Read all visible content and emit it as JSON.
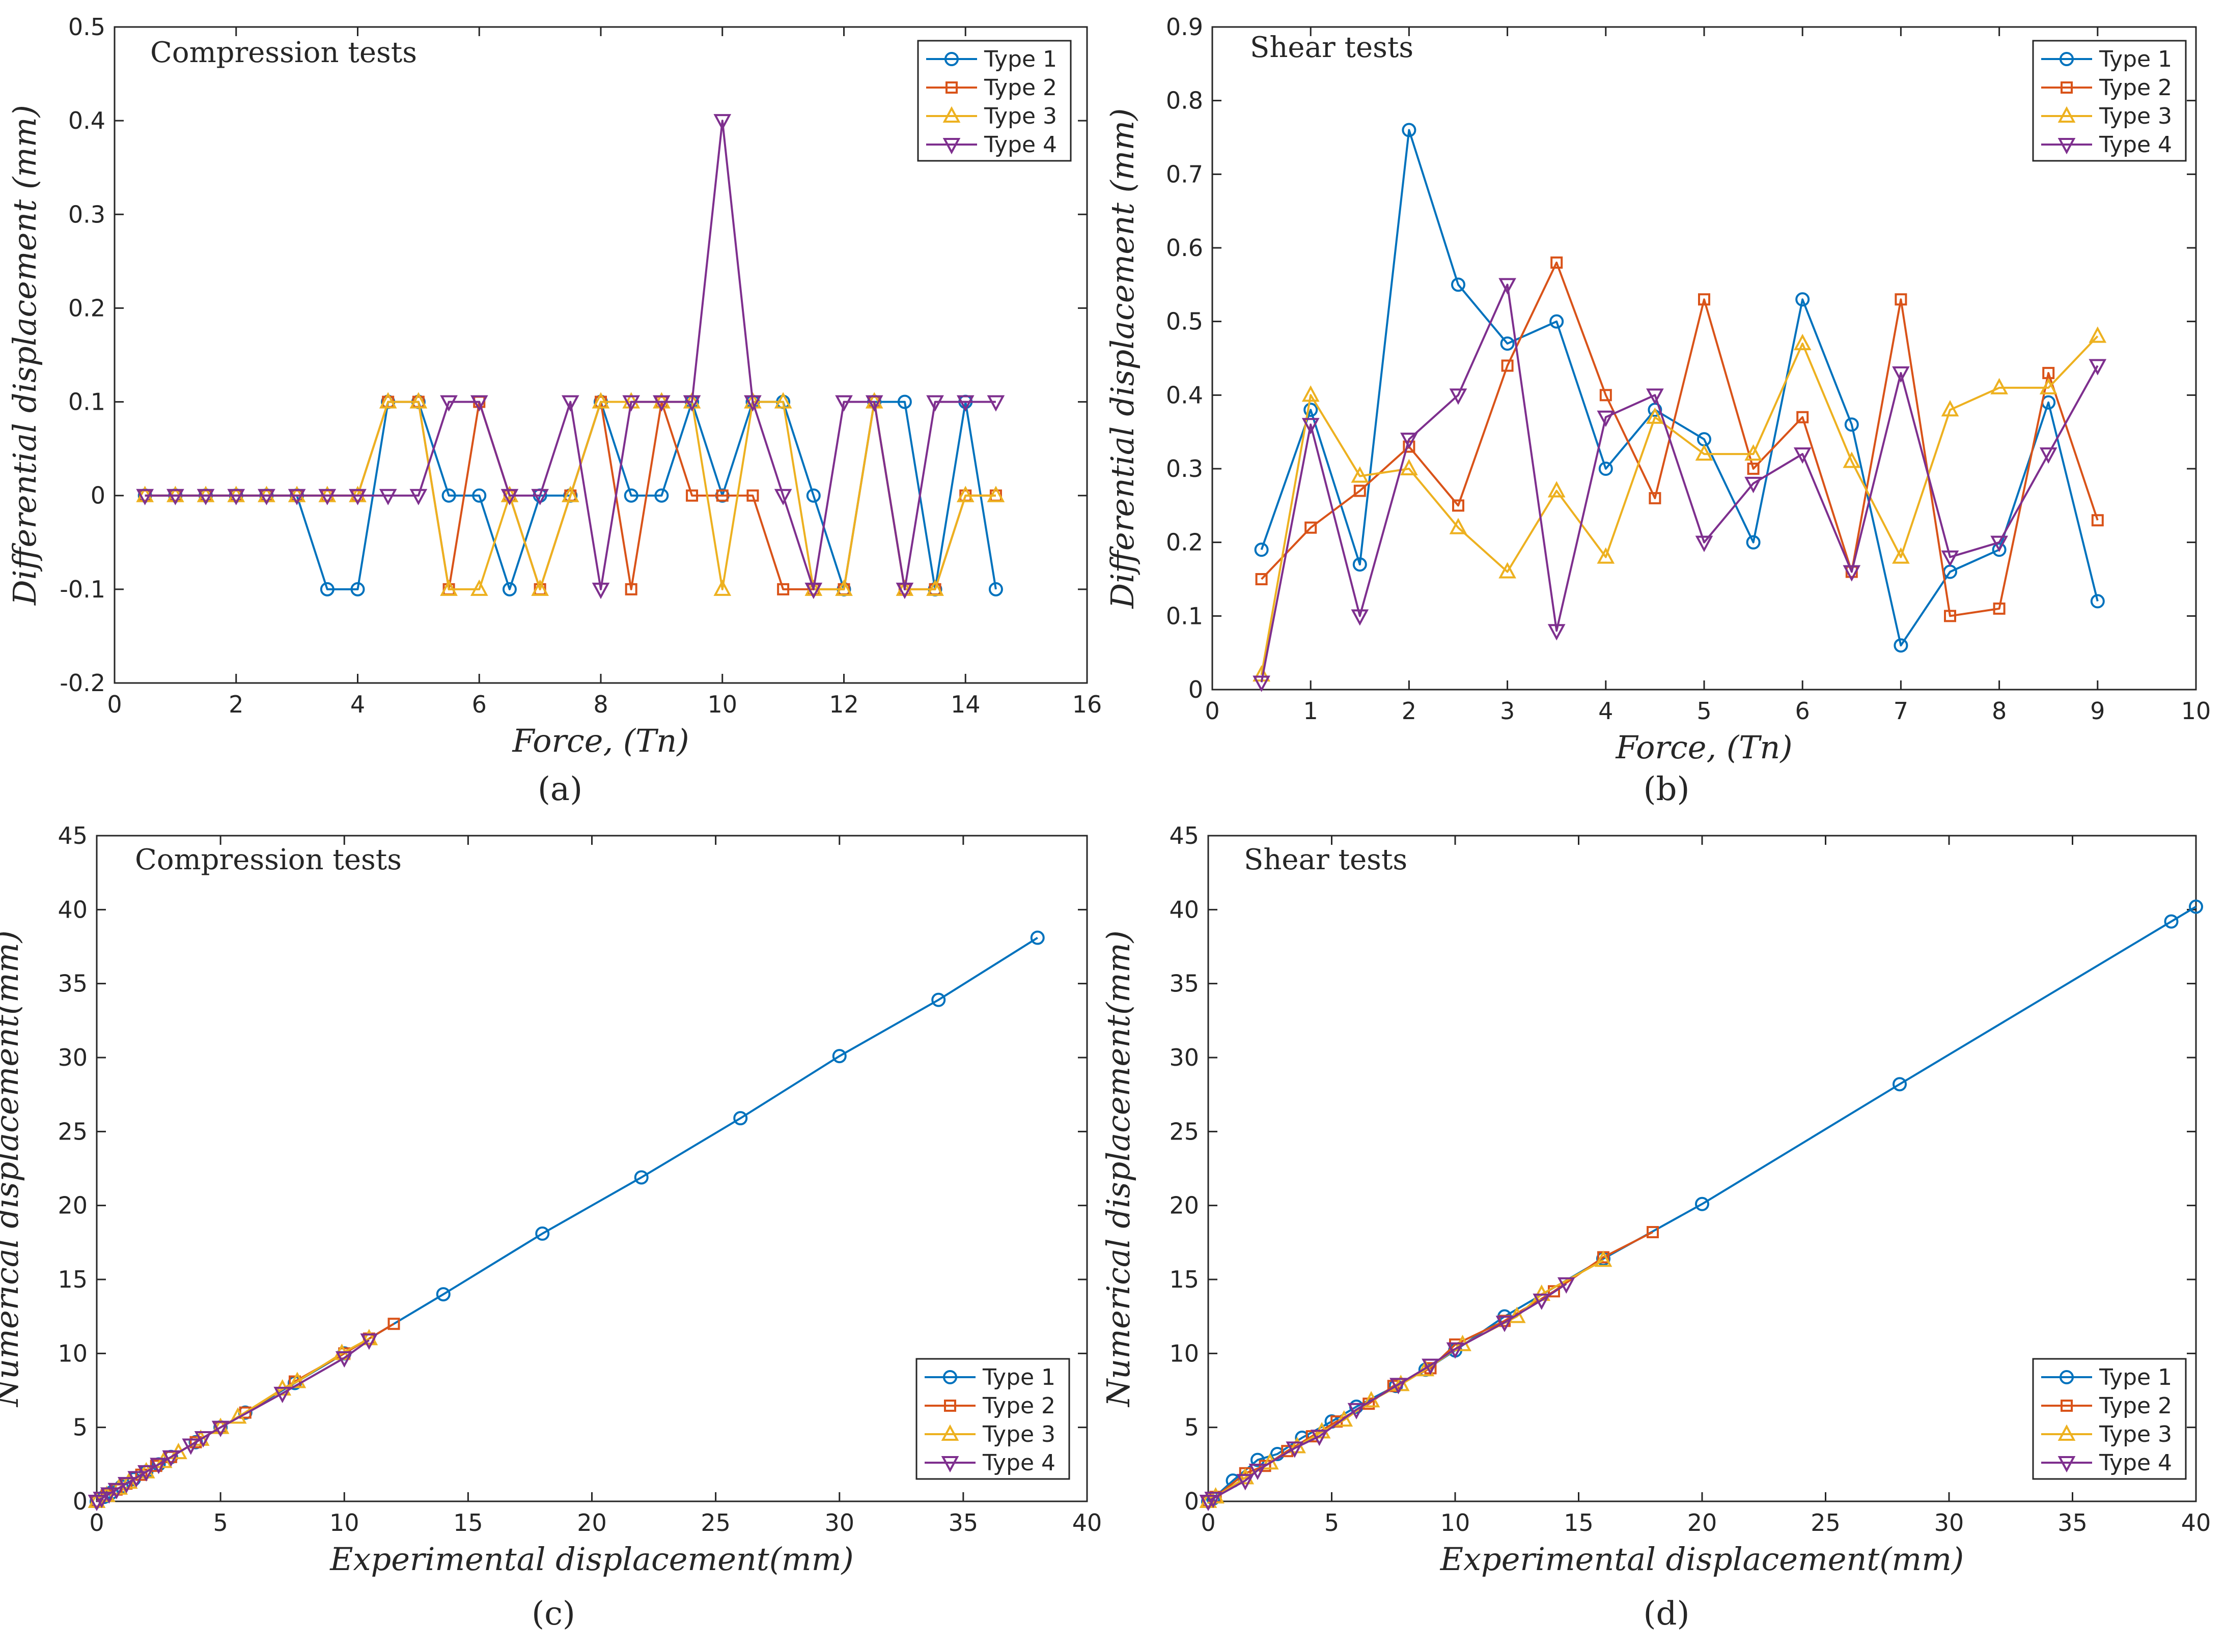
{
  "colors": {
    "type1": "#0072BD",
    "type2": "#D95319",
    "type3": "#EDB120",
    "type4": "#7E2F8E",
    "axis": "#262626",
    "grid": "#262626"
  },
  "chart_data": [
    {
      "type": "line",
      "panel_label": "(a)",
      "title": "Compression tests",
      "xlabel": "Force, (Tn)",
      "ylabel": "Differential displacement (mm)",
      "xlim": [
        0,
        16
      ],
      "ylim": [
        -0.2,
        0.5
      ],
      "xticks": [
        0,
        2,
        4,
        6,
        8,
        10,
        12,
        14,
        16
      ],
      "yticks": [
        -0.2,
        -0.1,
        0,
        0.1,
        0.2,
        0.3,
        0.4,
        0.5
      ],
      "legend_position": "top-right",
      "series": [
        {
          "name": "Type 1",
          "marker": "circle",
          "x": [
            0.5,
            1,
            1.5,
            2,
            2.5,
            3,
            3.5,
            4,
            4.5,
            5,
            5.5,
            6,
            6.5,
            7,
            7.5,
            8,
            8.5,
            9,
            9.5,
            10,
            10.5,
            11,
            11.5,
            12,
            12.5,
            13,
            13.5,
            14,
            14.5
          ],
          "y": [
            0,
            0,
            0,
            0,
            0,
            0,
            -0.1,
            -0.1,
            0.1,
            0.1,
            0,
            0,
            -0.1,
            0,
            0,
            0.1,
            0,
            0,
            0.1,
            0,
            0.1,
            0.1,
            0,
            -0.1,
            0.1,
            0.1,
            -0.1,
            0.1,
            -0.1
          ]
        },
        {
          "name": "Type 2",
          "marker": "square",
          "x": [
            0.5,
            1,
            1.5,
            2,
            2.5,
            3,
            3.5,
            4,
            4.5,
            5,
            5.5,
            6,
            6.5,
            7,
            7.5,
            8,
            8.5,
            9,
            9.5,
            10,
            10.5,
            11,
            11.5,
            12,
            12.5,
            13,
            13.5,
            14,
            14.5
          ],
          "y": [
            0,
            0,
            0,
            0,
            0,
            0,
            0,
            0,
            0.1,
            0.1,
            -0.1,
            0.1,
            0,
            -0.1,
            0,
            0.1,
            -0.1,
            0.1,
            0,
            0,
            0,
            -0.1,
            -0.1,
            -0.1,
            0.1,
            -0.1,
            -0.1,
            0,
            0
          ]
        },
        {
          "name": "Type 3",
          "marker": "triangle-up",
          "x": [
            0.5,
            1,
            1.5,
            2,
            2.5,
            3,
            3.5,
            4,
            4.5,
            5,
            5.5,
            6,
            6.5,
            7,
            7.5,
            8,
            8.5,
            9,
            9.5,
            10,
            10.5,
            11,
            11.5,
            12,
            12.5,
            13,
            13.5,
            14,
            14.5
          ],
          "y": [
            0,
            0,
            0,
            0,
            0,
            0,
            0,
            0,
            0.1,
            0.1,
            -0.1,
            -0.1,
            0,
            -0.1,
            0,
            0.1,
            0.1,
            0.1,
            0.1,
            -0.1,
            0.1,
            0.1,
            -0.1,
            -0.1,
            0.1,
            -0.1,
            -0.1,
            0,
            0
          ]
        },
        {
          "name": "Type 4",
          "marker": "triangle-down",
          "x": [
            0.5,
            1,
            1.5,
            2,
            2.5,
            3,
            3.5,
            4,
            4.5,
            5,
            5.5,
            6,
            6.5,
            7,
            7.5,
            8,
            8.5,
            9,
            9.5,
            10,
            10.5,
            11,
            11.5,
            12,
            12.5,
            13,
            13.5,
            14,
            14.5
          ],
          "y": [
            0,
            0,
            0,
            0,
            0,
            0,
            0,
            0,
            0,
            0,
            0.1,
            0.1,
            0,
            0,
            0.1,
            -0.1,
            0.1,
            0.1,
            0.1,
            0.4,
            0.1,
            0,
            -0.1,
            0.1,
            0.1,
            -0.1,
            0.1,
            0.1,
            0.1
          ]
        }
      ]
    },
    {
      "type": "line",
      "panel_label": "(b)",
      "title": "Shear tests",
      "xlabel": "Force, (Tn)",
      "ylabel": "Differential displacement (mm)",
      "xlim": [
        0,
        10
      ],
      "ylim": [
        0,
        0.9
      ],
      "xticks": [
        0,
        1,
        2,
        3,
        4,
        5,
        6,
        7,
        8,
        9,
        10
      ],
      "yticks": [
        0,
        0.1,
        0.2,
        0.3,
        0.4,
        0.5,
        0.6,
        0.7,
        0.8,
        0.9
      ],
      "legend_position": "top-right",
      "series": [
        {
          "name": "Type 1",
          "marker": "circle",
          "x": [
            0.5,
            1,
            1.5,
            2,
            2.5,
            3,
            3.5,
            4,
            4.5,
            5,
            5.5,
            6,
            6.5,
            7,
            7.5,
            8,
            8.5,
            9
          ],
          "y": [
            0.19,
            0.38,
            0.17,
            0.76,
            0.55,
            0.47,
            0.5,
            0.3,
            0.38,
            0.34,
            0.2,
            0.53,
            0.36,
            0.06,
            0.16,
            0.19,
            0.39,
            0.12
          ]
        },
        {
          "name": "Type 2",
          "marker": "square",
          "x": [
            0.5,
            1,
            1.5,
            2,
            2.5,
            3,
            3.5,
            4,
            4.5,
            5,
            5.5,
            6,
            6.5,
            7,
            7.5,
            8,
            8.5,
            9
          ],
          "y": [
            0.15,
            0.22,
            0.27,
            0.33,
            0.25,
            0.44,
            0.58,
            0.4,
            0.26,
            0.53,
            0.3,
            0.37,
            0.16,
            0.53,
            0.1,
            0.11,
            0.43,
            0.23
          ]
        },
        {
          "name": "Type 3",
          "marker": "triangle-up",
          "x": [
            0.5,
            1,
            1.5,
            2,
            2.5,
            3,
            3.5,
            4,
            4.5,
            5,
            5.5,
            6,
            6.5,
            7,
            7.5,
            8,
            8.5,
            9
          ],
          "y": [
            0.02,
            0.4,
            0.29,
            0.3,
            0.22,
            0.16,
            0.27,
            0.18,
            0.37,
            0.32,
            0.32,
            0.47,
            0.31,
            0.18,
            0.38,
            0.41,
            0.41,
            0.48
          ]
        },
        {
          "name": "Type 4",
          "marker": "triangle-down",
          "x": [
            0.5,
            1,
            1.5,
            2,
            2.5,
            3,
            3.5,
            4,
            4.5,
            5,
            5.5,
            6,
            6.5,
            7,
            7.5,
            8,
            8.5,
            9
          ],
          "y": [
            0.01,
            0.36,
            0.1,
            0.34,
            0.4,
            0.55,
            0.08,
            0.37,
            0.4,
            0.2,
            0.28,
            0.32,
            0.16,
            0.43,
            0.18,
            0.2,
            0.32,
            0.44
          ]
        }
      ]
    },
    {
      "type": "line",
      "panel_label": "(c)",
      "title": "Compression tests",
      "xlabel": "Experimental displacement(mm)",
      "ylabel": "Numerical displacement(mm)",
      "xlim": [
        0,
        40
      ],
      "ylim": [
        0,
        45
      ],
      "xticks": [
        0,
        5,
        10,
        15,
        20,
        25,
        30,
        35,
        40
      ],
      "yticks": [
        0,
        5,
        10,
        15,
        20,
        25,
        30,
        35,
        40,
        45
      ],
      "legend_position": "bottom-right",
      "series": [
        {
          "name": "Type 1",
          "marker": "circle",
          "x": [
            0,
            0.3,
            0.6,
            1,
            1.5,
            2,
            2.5,
            3,
            4,
            5,
            6,
            8,
            10,
            14,
            18,
            22,
            26,
            30,
            34,
            38
          ],
          "y": [
            0,
            0.3,
            0.6,
            1,
            1.5,
            2,
            2.5,
            3,
            4,
            5,
            6,
            8,
            10,
            14,
            18.1,
            21.9,
            25.9,
            30.1,
            33.9,
            38.1
          ]
        },
        {
          "name": "Type 2",
          "marker": "square",
          "x": [
            0,
            0.4,
            0.8,
            1.2,
            1.8,
            2.4,
            3,
            4,
            5,
            6,
            8,
            10,
            11,
            12
          ],
          "y": [
            0,
            0.4,
            0.8,
            1.2,
            1.8,
            2.4,
            3,
            4,
            5,
            6,
            8.1,
            10,
            11,
            12
          ]
        },
        {
          "name": "Type 3",
          "marker": "triangle-up",
          "x": [
            0,
            0.4,
            0.9,
            1.3,
            2,
            2.7,
            3.3,
            4.2,
            5,
            5.7,
            7.5,
            8.1,
            9.9,
            11
          ],
          "y": [
            0,
            0.4,
            0.9,
            1.3,
            2,
            2.7,
            3.3,
            4.2,
            5,
            5.7,
            7.6,
            8.1,
            10,
            11
          ]
        },
        {
          "name": "Type 4",
          "marker": "triangle-down",
          "x": [
            0,
            0.2,
            0.5,
            0.8,
            1.2,
            1.6,
            2,
            2.5,
            3,
            3.8,
            4.3,
            5,
            7.5,
            10,
            11
          ],
          "y": [
            0,
            0.2,
            0.5,
            0.8,
            1.2,
            1.6,
            2,
            2.5,
            3,
            3.8,
            4.3,
            5,
            7.3,
            9.7,
            10.9
          ]
        }
      ]
    },
    {
      "type": "line",
      "panel_label": "(d)",
      "title": "Shear tests",
      "xlabel": "Experimental displacement(mm)",
      "ylabel": "Numerical displacement(mm)",
      "xlim": [
        0,
        40
      ],
      "ylim": [
        0,
        45
      ],
      "xticks": [
        0,
        5,
        10,
        15,
        20,
        25,
        30,
        35,
        40
      ],
      "yticks": [
        0,
        5,
        10,
        15,
        20,
        25,
        30,
        35,
        40,
        45
      ],
      "legend_position": "bottom-right",
      "series": [
        {
          "name": "Type 1",
          "marker": "circle",
          "x": [
            0,
            0.2,
            1,
            2,
            2.8,
            3.8,
            5,
            6,
            7.6,
            8.8,
            10,
            12,
            16,
            20,
            28,
            39,
            40
          ],
          "y": [
            0,
            0.2,
            1.4,
            2.8,
            3.2,
            4.3,
            5.4,
            6.4,
            7.8,
            8.9,
            10.2,
            12.5,
            16.4,
            20.1,
            28.2,
            39.2,
            40.2
          ]
        },
        {
          "name": "Type 2",
          "marker": "square",
          "x": [
            0,
            0.3,
            1.5,
            2.3,
            3.2,
            4.2,
            5.2,
            6.5,
            7.5,
            9,
            10,
            12,
            14,
            16,
            18
          ],
          "y": [
            0,
            0.3,
            1.9,
            2.4,
            3.4,
            4.4,
            5.4,
            6.6,
            7.8,
            9,
            10.6,
            12.2,
            14.2,
            16.5,
            18.2
          ]
        },
        {
          "name": "Type 3",
          "marker": "triangle-up",
          "x": [
            0,
            0.3,
            1.5,
            2.5,
            3.6,
            4.6,
            5.5,
            6.6,
            7.8,
            8.8,
            10.3,
            12.5,
            13.5,
            16
          ],
          "y": [
            0,
            0.3,
            1.6,
            2.6,
            3.7,
            4.7,
            5.5,
            6.8,
            7.9,
            8.9,
            10.6,
            12.5,
            14,
            16.3
          ]
        },
        {
          "name": "Type 4",
          "marker": "triangle-down",
          "x": [
            0,
            0.2,
            1.5,
            2,
            3.5,
            4.5,
            6,
            7.7,
            9,
            10,
            12,
            13.5,
            14.5
          ],
          "y": [
            0,
            0.2,
            1.4,
            2.1,
            3.6,
            4.4,
            6.2,
            7.9,
            9.2,
            10.3,
            12.1,
            13.6,
            14.7
          ]
        }
      ]
    }
  ]
}
